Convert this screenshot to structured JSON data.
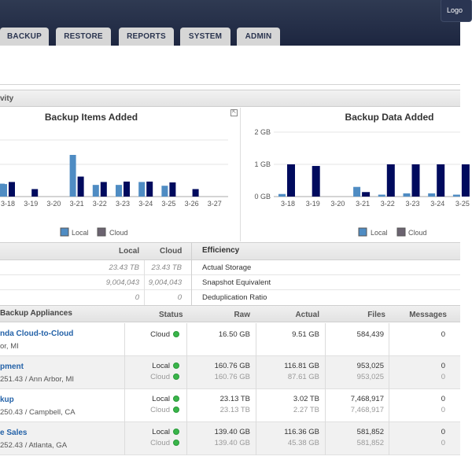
{
  "header": {
    "logout_label": "Logo",
    "tabs": [
      {
        "label": "BACKUP"
      },
      {
        "label": "RESTORE"
      },
      {
        "label": "REPORTS"
      },
      {
        "label": "SYSTEM"
      },
      {
        "label": "ADMIN"
      }
    ]
  },
  "activity": {
    "section_title": "vity",
    "expand_icon": "expand-icon"
  },
  "chart_data": [
    {
      "type": "bar",
      "title": "Backup Items Added",
      "categories": [
        "3-18",
        "3-19",
        "3-20",
        "3-21",
        "3-22",
        "3-23",
        "3-24",
        "3-25",
        "3-26",
        "3-27"
      ],
      "series": [
        {
          "name": "Local",
          "color": "#4f8cc3",
          "values": [
            0.3,
            0,
            0,
            1.0,
            0.28,
            0.28,
            0.35,
            0.26,
            0,
            0
          ]
        },
        {
          "name": "Cloud",
          "color": "#000b5e",
          "values": [
            0.35,
            0.18,
            0,
            0.48,
            0.35,
            0.36,
            0.36,
            0.34,
            0.18,
            0
          ]
        }
      ],
      "prefix_series_values": {
        "Local": 0.31
      },
      "legend": [
        "Local",
        "Cloud"
      ]
    },
    {
      "type": "bar",
      "title": "Backup Data Added",
      "categories": [
        "3-18",
        "3-19",
        "3-20",
        "3-21",
        "3-22",
        "3-23",
        "3-24",
        "3-25"
      ],
      "yticks": [
        "2 GB",
        "1 GB",
        "0 GB"
      ],
      "ylim": [
        0,
        2
      ],
      "series": [
        {
          "name": "Local",
          "color": "#4f8cc3",
          "values": [
            0.08,
            0,
            0,
            0.3,
            0.06,
            0.1,
            0.1,
            0.06
          ]
        },
        {
          "name": "Cloud",
          "color": "#000b5e",
          "values": [
            1.0,
            0.95,
            0,
            0.14,
            1.0,
            1.0,
            1.0,
            1.0
          ]
        }
      ],
      "legend": [
        "Local",
        "Cloud"
      ]
    }
  ],
  "summary": {
    "col_local": "Local",
    "col_cloud": "Cloud",
    "rows": [
      {
        "local": "23.43 TB",
        "cloud": "23.43 TB"
      },
      {
        "local": "9,004,043",
        "cloud": "9,004,043"
      },
      {
        "local": "0",
        "cloud": "0"
      }
    ],
    "efficiency": {
      "title": "Efficiency",
      "rows": [
        "Actual Storage",
        "Snapshot Equivalent",
        "Deduplication Ratio"
      ]
    }
  },
  "appliances": {
    "title": "Backup Appliances",
    "columns": {
      "status": "Status",
      "raw": "Raw",
      "actual": "Actual",
      "files": "Files",
      "messages": "Messages"
    },
    "rows": [
      {
        "name": "nda Cloud-to-Cloud",
        "loc": "or, MI",
        "lines": [
          {
            "status": "Cloud",
            "raw": "16.50 GB",
            "actual": "9.51 GB",
            "files": "584,439",
            "messages": "0"
          }
        ]
      },
      {
        "name": "pment",
        "loc": "251.43 / Ann Arbor, MI",
        "lines": [
          {
            "status": "Local",
            "raw": "160.76 GB",
            "actual": "116.81 GB",
            "files": "953,025",
            "messages": "0"
          },
          {
            "status": "Cloud",
            "raw": "160.76 GB",
            "actual": "87.61 GB",
            "files": "953,025",
            "messages": "0"
          }
        ]
      },
      {
        "name": "kup",
        "loc": "250.43 / Campbell, CA",
        "lines": [
          {
            "status": "Local",
            "raw": "23.13 TB",
            "actual": "3.02 TB",
            "files": "7,468,917",
            "messages": "0"
          },
          {
            "status": "Cloud",
            "raw": "23.13 TB",
            "actual": "2.27 TB",
            "files": "7,468,917",
            "messages": "0"
          }
        ]
      },
      {
        "name": "e Sales",
        "loc": "252.43 / Atlanta, GA",
        "lines": [
          {
            "status": "Local",
            "raw": "139.40 GB",
            "actual": "116.36 GB",
            "files": "581,852",
            "messages": "0"
          },
          {
            "status": "Cloud",
            "raw": "139.40 GB",
            "actual": "45.38 GB",
            "files": "581,852",
            "messages": "0"
          }
        ]
      }
    ]
  }
}
